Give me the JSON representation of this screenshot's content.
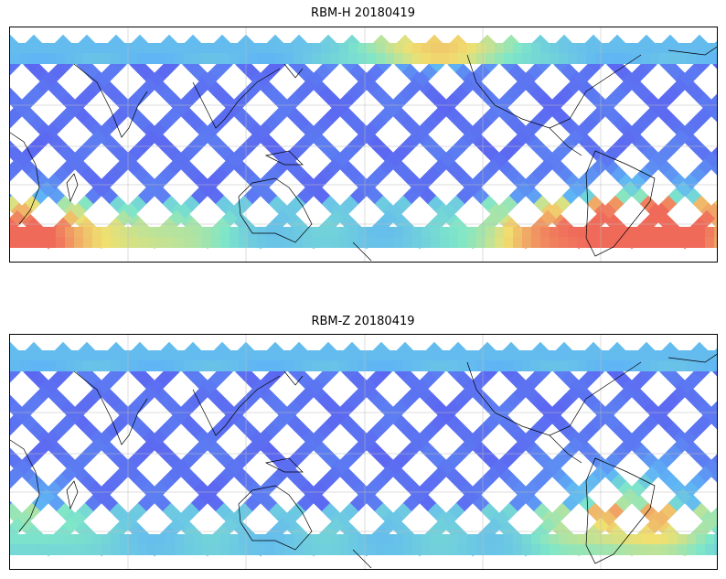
{
  "figure": {
    "panels": [
      {
        "title": "RBM-H 20180419",
        "variable": "RBM-H",
        "date": "20180419",
        "hot_regions": [
          "south-pacific-west",
          "south-atlantic",
          "north-pacific-top"
        ]
      },
      {
        "title": "RBM-Z 20180419",
        "variable": "RBM-Z",
        "date": "20180419",
        "hot_regions": [
          "south-atlantic-mild"
        ]
      }
    ],
    "colormap": "jet",
    "colors": {
      "low": "#5b5bf0",
      "mid_low": "#5fb4f5",
      "mid": "#7fe6c8",
      "mid_high": "#f0e070",
      "high": "#f06a5a"
    },
    "gridlines": true,
    "coastlines": true
  }
}
